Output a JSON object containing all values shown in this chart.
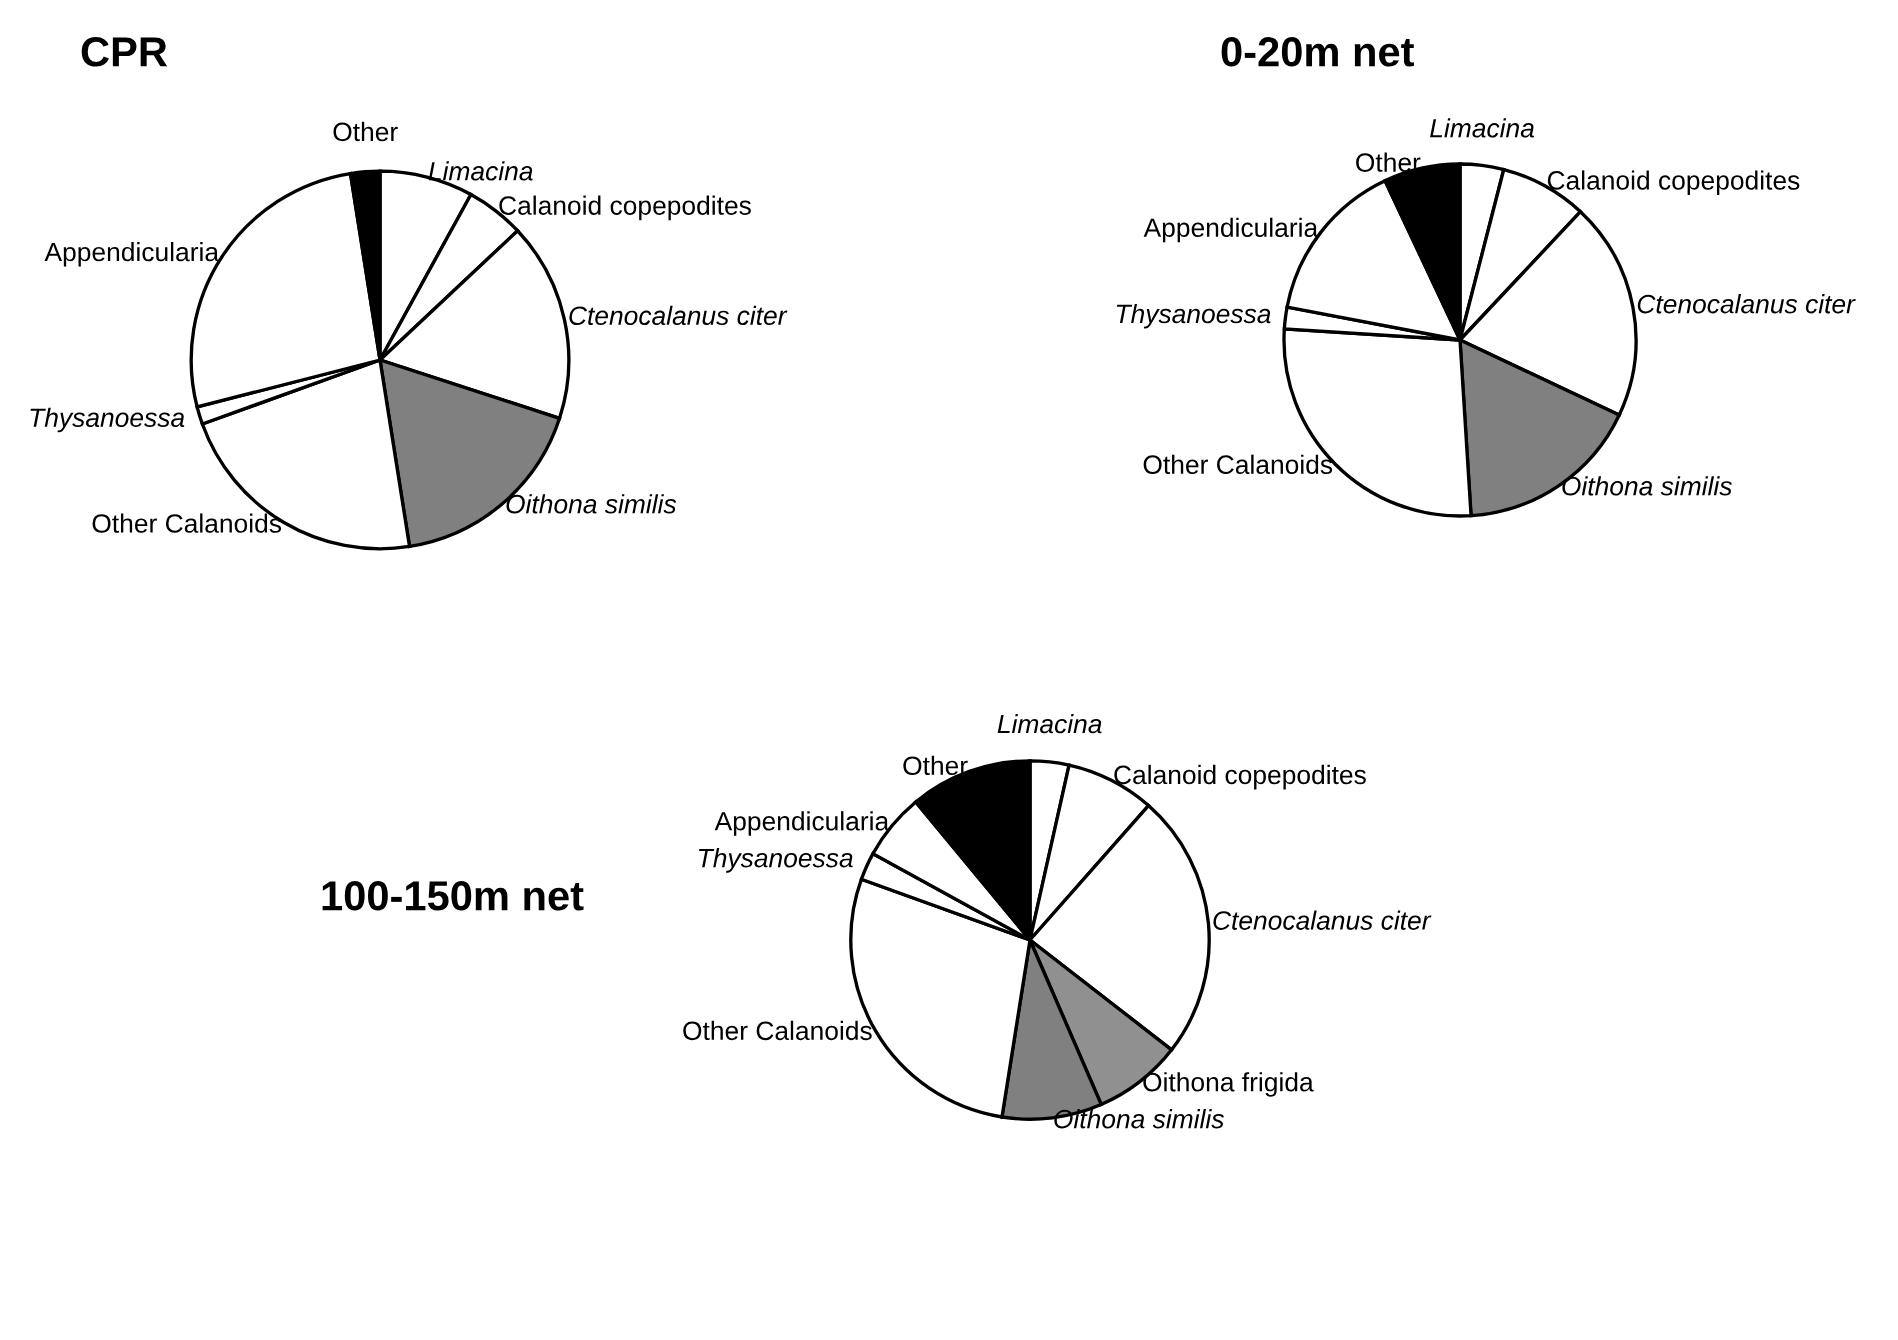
{
  "chart_data": [
    {
      "type": "pie",
      "title": "CPR",
      "categories": [
        "Limacina",
        "Calanoid copepodites",
        "Ctenocalanus citer",
        "Oithona similis",
        "Other Calanoids",
        "Thysanoessa",
        "Appendicularia",
        "Other"
      ],
      "values": [
        8,
        5,
        17,
        17.5,
        22,
        1.5,
        26.5,
        2.5
      ],
      "colors": [
        "#ffffff",
        "#ffffff",
        "#ffffff",
        "#808080",
        "#ffffff",
        "#ffffff",
        "#ffffff",
        "#000000"
      ]
    },
    {
      "type": "pie",
      "title": "0-20m net",
      "categories": [
        "Limacina",
        "Calanoid copepodites",
        "Ctenocalanus citer",
        "Oithona similis",
        "Other Calanoids",
        "Thysanoessa",
        "Appendicularia",
        "Other"
      ],
      "values": [
        4,
        8,
        20,
        17,
        27,
        2,
        15,
        7
      ],
      "colors": [
        "#ffffff",
        "#ffffff",
        "#ffffff",
        "#808080",
        "#ffffff",
        "#ffffff",
        "#ffffff",
        "#000000"
      ]
    },
    {
      "type": "pie",
      "title": "100-150m net",
      "categories": [
        "Limacina",
        "Calanoid copepodites",
        "Ctenocalanus citer",
        "Oithona frigida",
        "Oithona similis",
        "Other Calanoids",
        "Thysanoessa",
        "Appendicularia",
        "Other"
      ],
      "values": [
        3.5,
        8,
        24,
        8,
        9,
        28,
        2.5,
        6,
        11
      ],
      "colors": [
        "#ffffff",
        "#ffffff",
        "#ffffff",
        "#909090",
        "#808080",
        "#ffffff",
        "#ffffff",
        "#ffffff",
        "#000000"
      ]
    }
  ]
}
